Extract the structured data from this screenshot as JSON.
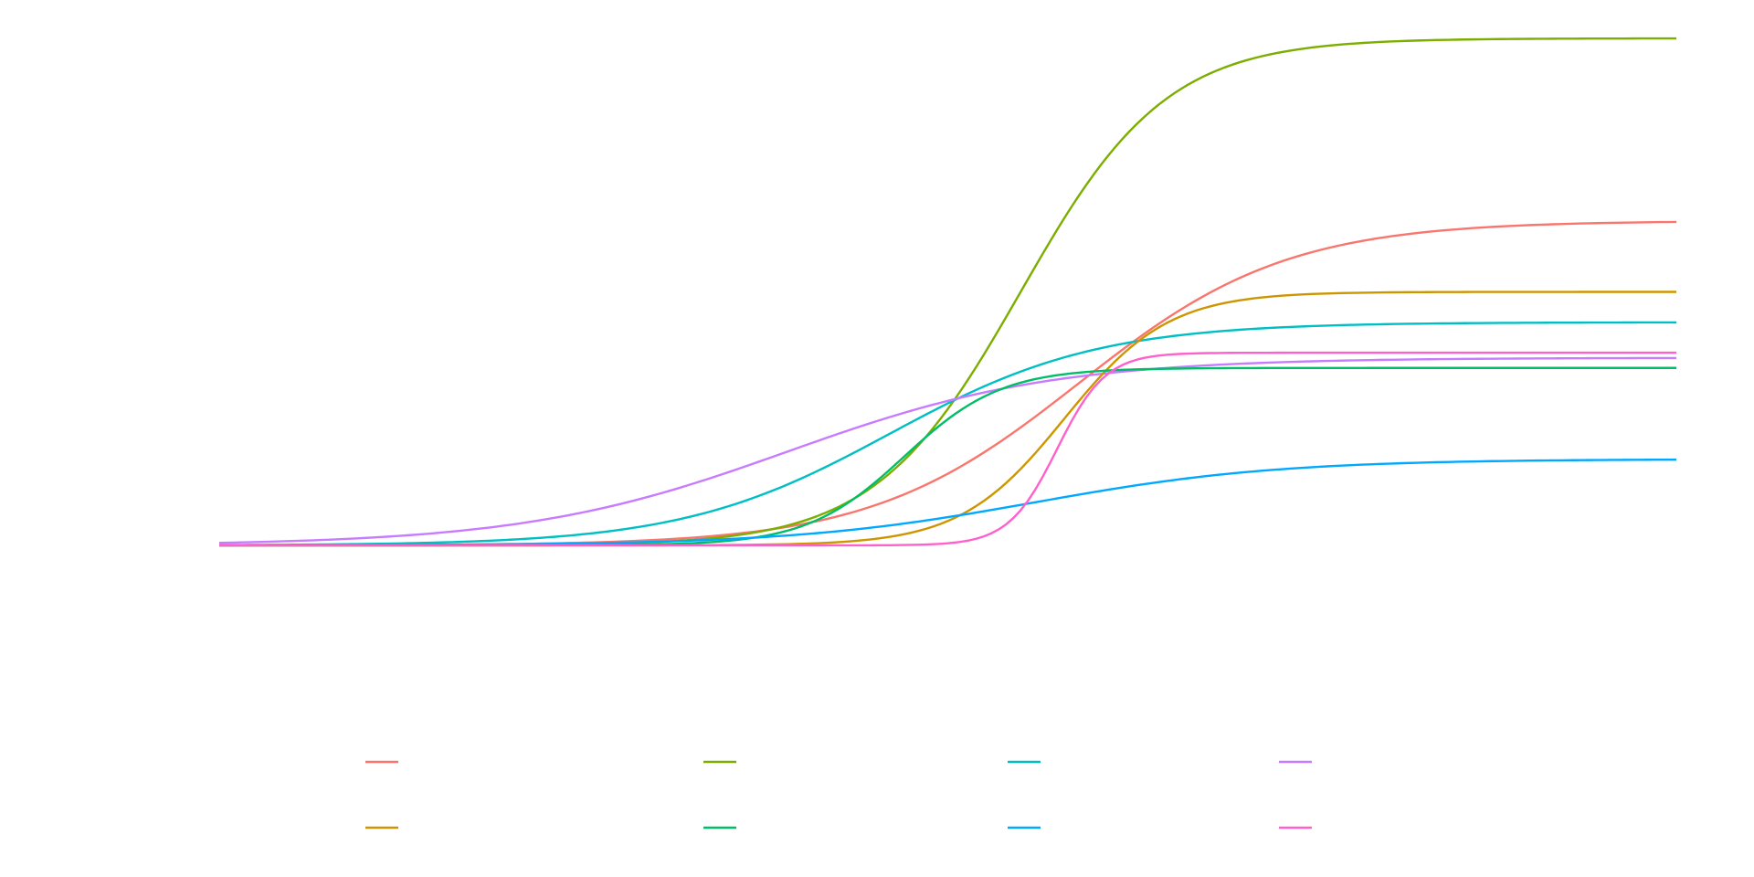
{
  "chart_data": {
    "type": "line",
    "title": "",
    "xlabel": "",
    "ylabel": "",
    "xlim": [
      0,
      10
    ],
    "ylim": [
      -0.1,
      1.0
    ],
    "grid": false,
    "legend": {
      "position": "bottom",
      "columns": 4
    },
    "series": [
      {
        "color": "#F8766D",
        "L": 0.64,
        "k": 1.4,
        "x0": 5.9
      },
      {
        "color": "#7CAE00",
        "L": 1.0,
        "k": 2.0,
        "x0": 5.5
      },
      {
        "color": "#00BFC4",
        "L": 0.44,
        "k": 1.4,
        "x0": 4.6
      },
      {
        "color": "#C77CFF",
        "L": 0.37,
        "k": 1.1,
        "x0": 3.9
      },
      {
        "color": "#CD9600",
        "L": 0.5,
        "k": 2.8,
        "x0": 5.8
      },
      {
        "color": "#00BE67",
        "L": 0.35,
        "k": 3.0,
        "x0": 4.7
      },
      {
        "color": "#00A9FF",
        "L": 0.17,
        "k": 1.2,
        "x0": 5.6
      },
      {
        "color": "#FF61CC",
        "L": 0.38,
        "k": 6.0,
        "x0": 5.75
      }
    ]
  }
}
